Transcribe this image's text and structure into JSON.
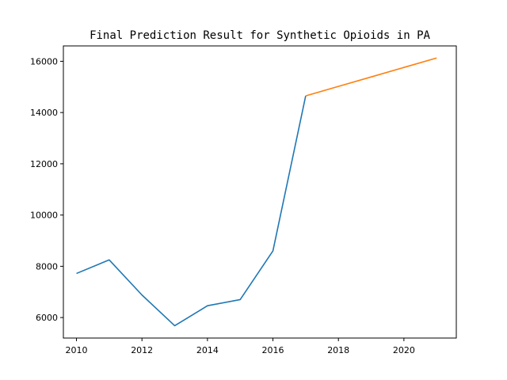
{
  "chart_data": {
    "type": "line",
    "title": "Final Prediction Result for Synthetic Opioids in PA",
    "xlabel": "",
    "ylabel": "",
    "xlim": [
      2009.6,
      2021.6
    ],
    "ylim": [
      5200,
      16600
    ],
    "x_ticks": [
      2010,
      2012,
      2014,
      2016,
      2018,
      2020
    ],
    "y_ticks": [
      6000,
      8000,
      10000,
      12000,
      14000,
      16000
    ],
    "grid": false,
    "series": [
      {
        "color": "#1f77b4",
        "x": [
          2010,
          2011,
          2012,
          2013,
          2014,
          2015,
          2016,
          2017
        ],
        "y": [
          7720,
          8250,
          6880,
          5680,
          6460,
          6700,
          8600,
          14650
        ]
      },
      {
        "color": "#ff7f0e",
        "x": [
          2017,
          2018,
          2019,
          2020,
          2021
        ],
        "y": [
          14650,
          15020,
          15390,
          15760,
          16130
        ]
      }
    ]
  }
}
